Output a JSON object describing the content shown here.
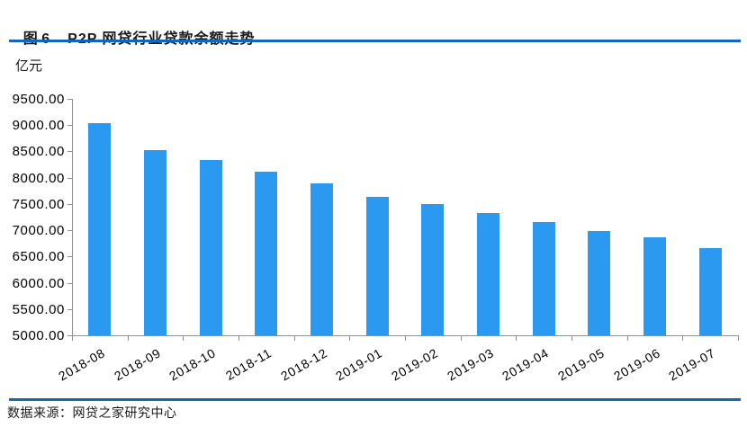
{
  "header": {
    "figure_label": "图 6",
    "title": "P2P 网贷行业贷款余额走势"
  },
  "chart_data": {
    "type": "bar",
    "title": "P2P 网贷行业贷款余额走势",
    "xlabel": "",
    "ylabel": "亿元",
    "categories": [
      "2018-08",
      "2018-09",
      "2018-10",
      "2018-11",
      "2018-12",
      "2019-01",
      "2019-02",
      "2019-03",
      "2019-04",
      "2019-05",
      "2019-06",
      "2019-07"
    ],
    "values": [
      9030,
      8530,
      8330,
      8110,
      7890,
      7640,
      7500,
      7320,
      7150,
      6990,
      6870,
      6660
    ],
    "ylim": [
      5000,
      9500
    ],
    "ytick_step": 500,
    "ytick_decimals": 2,
    "grid": false,
    "legend": "none",
    "x_label_rotation_deg": -30,
    "bar_color": "#2b99ef"
  },
  "footer": {
    "source": "数据来源：网贷之家研究中心"
  },
  "colors": {
    "accent_rule": "#1565c0",
    "bar": "#2b99ef",
    "axis": "#8f8f8f",
    "text": "#000000"
  }
}
